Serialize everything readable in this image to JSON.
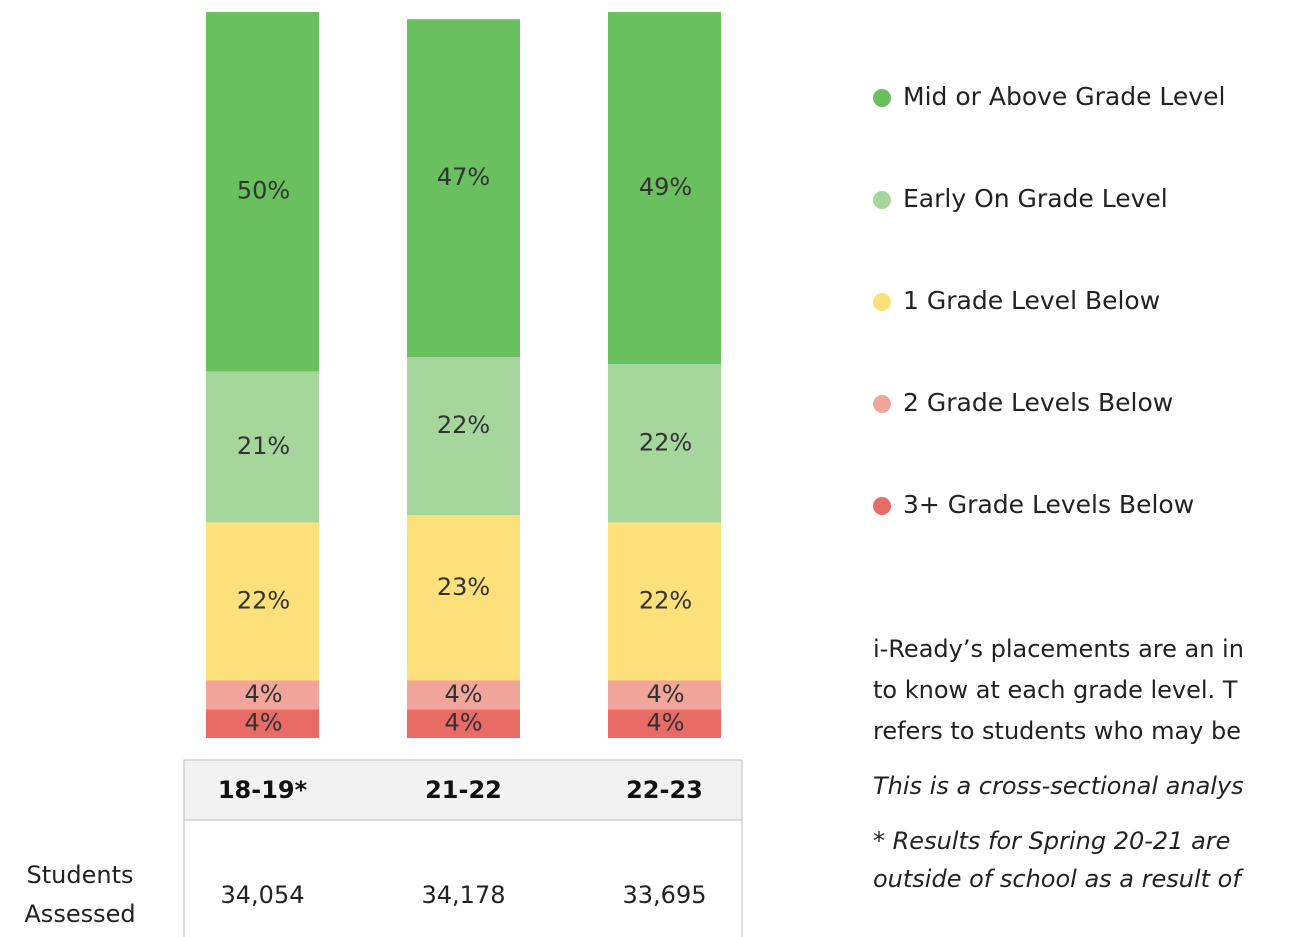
{
  "chart_data": {
    "type": "stacked_bar",
    "categories": [
      "18-19*",
      "21-22",
      "22-23"
    ],
    "ylim": [
      0,
      101
    ],
    "series": [
      {
        "name": "3+ Grade Levels Below",
        "color": "#e96b66",
        "values": [
          4,
          4,
          4
        ],
        "value_labels": [
          "4%",
          "4%",
          "4%"
        ]
      },
      {
        "name": "2 Grade Levels Below",
        "color": "#f2a59a",
        "values": [
          4,
          4,
          4
        ],
        "value_labels": [
          "4%",
          "4%",
          "4%"
        ]
      },
      {
        "name": "1 Grade Level Below",
        "color": "#fce07a",
        "values": [
          22,
          23,
          22
        ],
        "value_labels": [
          "22%",
          "23%",
          "22%"
        ]
      },
      {
        "name": "Early On Grade Level",
        "color": "#a5d69b",
        "values": [
          21,
          22,
          22
        ],
        "value_labels": [
          "21%",
          "22%",
          "22%"
        ]
      },
      {
        "name": "Mid or Above Grade Level",
        "color": "#6abf5e",
        "values": [
          50,
          47,
          49
        ],
        "value_labels": [
          "50%",
          "47%",
          "49%"
        ]
      }
    ],
    "table": {
      "row_label": "Students Assessed",
      "values": [
        "34,054",
        "34,178",
        "33,695"
      ]
    }
  },
  "notes": [
    "i-Ready’s placements are an in",
    "to know at each grade level. T",
    "refers to students who may be",
    "This is a cross-sectional analys",
    "* Results for Spring 20-21 are",
    "outside of school as a result of"
  ]
}
